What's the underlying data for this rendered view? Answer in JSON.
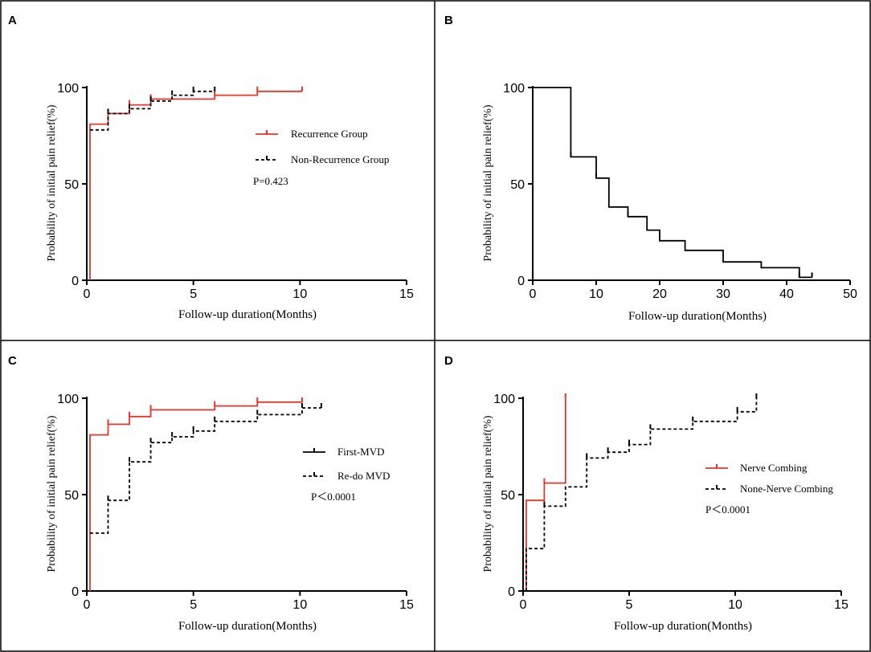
{
  "colors": {
    "red": "#e8352b",
    "black": "#000000"
  },
  "chart_data": [
    {
      "panel": "A",
      "type": "line",
      "xlabel": "Follow-up duration(Months)",
      "ylabel": "Probability of initial pain relief(%)",
      "xlim": [
        0,
        15
      ],
      "ylim": [
        0,
        100
      ],
      "xticks": [
        "0",
        "5",
        "10",
        "15"
      ],
      "yticks": [
        "0",
        "50",
        "100"
      ],
      "annotation": "P=0.423",
      "series": [
        {
          "name": "Recurrence Group",
          "style": "solid",
          "color": "#e8352b",
          "x": [
            0.15,
            0.15,
            1,
            2,
            3,
            6,
            8,
            10.1
          ],
          "y": [
            0,
            81,
            86.5,
            91,
            94,
            96,
            98,
            98
          ],
          "censor": [
            [
              1,
              86.5
            ],
            [
              2,
              91
            ],
            [
              3,
              94
            ],
            [
              6,
              96
            ],
            [
              8,
              98
            ],
            [
              10.1,
              98
            ]
          ]
        },
        {
          "name": "Non-Recurrence Group",
          "style": "dashed",
          "color": "#000000",
          "x": [
            0.15,
            1,
            2,
            3,
            4,
            5,
            6
          ],
          "y": [
            78,
            86.5,
            89,
            93,
            96,
            98,
            98
          ],
          "censor": [
            [
              1,
              86.5
            ],
            [
              2,
              89
            ],
            [
              3,
              93
            ],
            [
              4,
              96
            ],
            [
              5,
              98
            ],
            [
              6,
              98
            ]
          ]
        }
      ]
    },
    {
      "panel": "B",
      "type": "line",
      "xlabel": "Follow-up duration(Months)",
      "ylabel": "Probability of initial pain relief(%)",
      "xlim": [
        0,
        50
      ],
      "ylim": [
        0,
        100
      ],
      "xticks": [
        "0",
        "10",
        "20",
        "30",
        "40",
        "50"
      ],
      "yticks": [
        "0",
        "50",
        "100"
      ],
      "series": [
        {
          "name": "",
          "style": "solid",
          "color": "#000000",
          "x": [
            0,
            6,
            10,
            12,
            15,
            18,
            20,
            24,
            30,
            36,
            42,
            44
          ],
          "y": [
            100,
            64,
            53,
            38,
            33,
            26,
            20.5,
            15.5,
            9.5,
            6.5,
            1.5,
            1.5
          ],
          "censor": [
            [
              6,
              64
            ],
            [
              10,
              53
            ],
            [
              15,
              33
            ],
            [
              42,
              1.5
            ],
            [
              44,
              1.5
            ]
          ]
        }
      ]
    },
    {
      "panel": "C",
      "type": "line",
      "xlabel": "Follow-up duration(Months)",
      "ylabel": "Probability of initial pain relief(%)",
      "xlim": [
        0,
        15
      ],
      "ylim": [
        0,
        100
      ],
      "xticks": [
        "0",
        "5",
        "10",
        "15"
      ],
      "yticks": [
        "0",
        "50",
        "100"
      ],
      "annotation": "P＜0.0001",
      "series": [
        {
          "name": "First-MVD",
          "style": "solid",
          "color": "#e8352b",
          "x": [
            0.15,
            0.15,
            1,
            2,
            3,
            6,
            8,
            10.1
          ],
          "y": [
            0,
            81,
            86.5,
            90.5,
            94,
            96,
            98,
            98
          ],
          "censor": [
            [
              1,
              86.5
            ],
            [
              2,
              90.5
            ],
            [
              3,
              94
            ],
            [
              6,
              96
            ],
            [
              8,
              98
            ],
            [
              10.1,
              98
            ]
          ]
        },
        {
          "name": "Re-do MVD",
          "style": "dashed",
          "color": "#000000",
          "x": [
            0.15,
            1,
            2,
            3,
            4,
            5,
            6,
            8,
            10.1,
            11
          ],
          "y": [
            30,
            47,
            67,
            77,
            80,
            83,
            88,
            91.5,
            95,
            95
          ],
          "censor": [
            [
              1,
              47
            ],
            [
              2,
              67
            ],
            [
              3,
              77
            ],
            [
              4,
              80
            ],
            [
              5,
              83
            ],
            [
              6,
              88
            ],
            [
              8,
              91.5
            ],
            [
              10.1,
              95
            ],
            [
              11,
              95
            ]
          ]
        }
      ]
    },
    {
      "panel": "D",
      "type": "line",
      "xlabel": "Follow-up duration(Months)",
      "ylabel": "Probability of initial pain relief(%)",
      "xlim": [
        0,
        15
      ],
      "ylim": [
        0,
        100
      ],
      "xticks": [
        "0",
        "5",
        "10",
        "15"
      ],
      "yticks": [
        "0",
        "50",
        "100"
      ],
      "annotation": "P＜0.0001",
      "series": [
        {
          "name": "Nerve Combing",
          "style": "solid",
          "color": "#e8352b",
          "x": [
            0.15,
            0.15,
            1,
            2,
            2
          ],
          "y": [
            0,
            47,
            56,
            56,
            100
          ],
          "censor": [
            [
              1,
              56
            ],
            [
              2,
              100
            ]
          ]
        },
        {
          "name": "None-Nerve Combing",
          "style": "dashed",
          "color": "#000000",
          "x": [
            0.15,
            0.15,
            1,
            2,
            3,
            4,
            5,
            6,
            8,
            10.1,
            11
          ],
          "y": [
            0,
            22,
            44,
            54,
            69,
            72,
            76,
            84,
            88,
            93,
            100
          ],
          "censor": [
            [
              1,
              44
            ],
            [
              3,
              69
            ],
            [
              4,
              72
            ],
            [
              5,
              76
            ],
            [
              6,
              84
            ],
            [
              8,
              88
            ],
            [
              10.1,
              93
            ],
            [
              11,
              100
            ]
          ]
        }
      ]
    }
  ]
}
